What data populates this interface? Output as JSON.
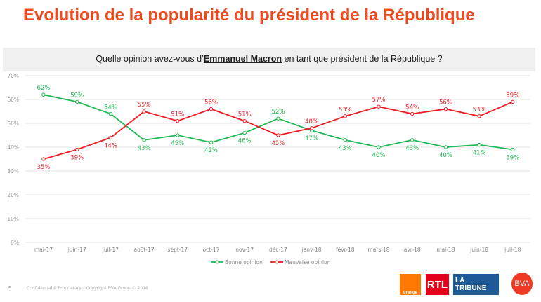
{
  "title": "Evolution de la popularité du président de la République",
  "question": {
    "before": "Quelle opinion avez-vous d’",
    "bold": "Emmanuel Macron",
    "after": " en tant que président de la République ?"
  },
  "footer": {
    "page": "9",
    "text": "Confidential & Proprietary – Copyright BVA Group © 2018"
  },
  "logos": {
    "orange": "orange",
    "rtl": "RTL",
    "tribune1": "LA",
    "tribune2": "TRIBUNE",
    "bva": "BVA"
  },
  "chart_data": {
    "type": "line",
    "categories": [
      "mai-17",
      "juin-17",
      "juil-17",
      "août-17",
      "sept-17",
      "oct-17",
      "nov-17",
      "déc-17",
      "janv-18",
      "févr-18",
      "mars-18",
      "avr-18",
      "mai-18",
      "juin-18",
      "juil-18"
    ],
    "ylim": [
      0,
      70
    ],
    "yticks": [
      "0%",
      "10%",
      "20%",
      "30%",
      "40%",
      "50%",
      "60%",
      "70%"
    ],
    "grid": true,
    "legend": "bottom",
    "series": [
      {
        "name": "Bonne opinion",
        "color": "#1db954",
        "values": [
          62,
          59,
          54,
          43,
          45,
          42,
          46,
          52,
          47,
          43,
          40,
          43,
          40,
          41,
          39
        ]
      },
      {
        "name": "Mauvaise opinion",
        "color": "#ee1c25",
        "values": [
          35,
          39,
          44,
          55,
          51,
          56,
          51,
          45,
          48,
          53,
          57,
          54,
          56,
          53,
          59
        ]
      }
    ]
  }
}
